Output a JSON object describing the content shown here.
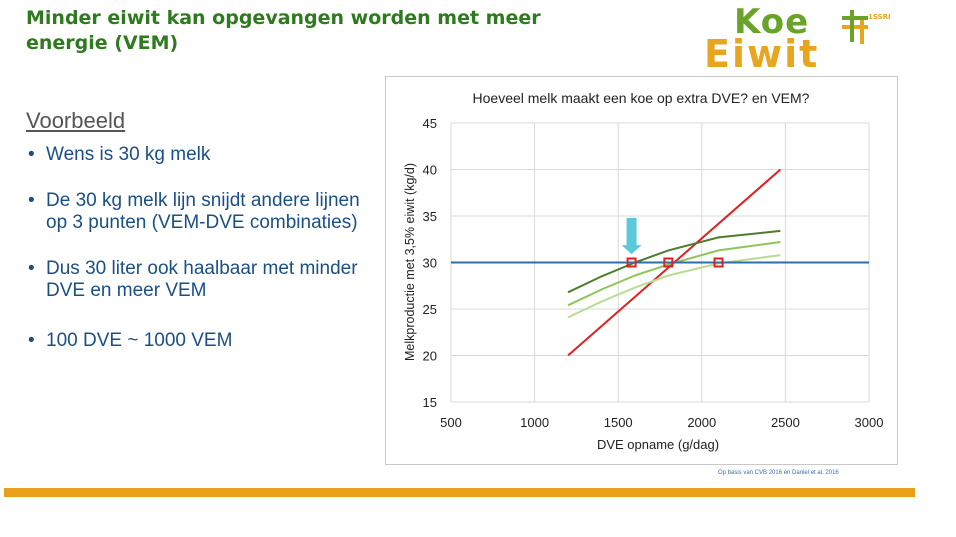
{
  "slide": {
    "title": "Minder eiwit kan opgevangen worden met meer energie (VEM)",
    "example_heading": "Voorbeeld",
    "bullets": [
      "Wens is 30 kg melk",
      "De 30 kg melk lijn snijdt andere lijnen op 3 punten (VEM-DVE combinaties)",
      "Dus 30 liter ook haalbaar met minder DVE en meer VEM",
      "100 DVE  ~ 1000 VEM"
    ],
    "source_note": "Op basis van CVB 2016 en Daniel et al. 2016",
    "logo": {
      "line1": "Koe",
      "line2": "Eiwit",
      "mark_text": "1SSRE"
    },
    "colors": {
      "title": "#2e7a1e",
      "bullet": "#1a4f86",
      "accent_bar": "#e8a019",
      "arrow": "#5bc8dc",
      "marker": "#e02020"
    }
  },
  "chart_data": {
    "type": "line",
    "title": "Hoeveel melk maakt een koe op extra DVE? en VEM?",
    "xlabel": "DVE opname (g/dag)",
    "ylabel": "Melkproductie met 3,5% eiwit (kg/d)",
    "xlim": [
      500,
      3000
    ],
    "ylim": [
      15,
      45
    ],
    "xticks": [
      500,
      1000,
      1500,
      2000,
      2500,
      3000
    ],
    "yticks": [
      15,
      20,
      25,
      30,
      35,
      40,
      45
    ],
    "grid": true,
    "series": [
      {
        "color": "#e02020",
        "x": [
          1200,
          2470
        ],
        "y": [
          20.0,
          40.0
        ]
      },
      {
        "color": "#4e7d2c",
        "x": [
          1200,
          1400,
          1600,
          1800,
          2100,
          2470
        ],
        "y": [
          26.8,
          28.5,
          30.0,
          31.3,
          32.7,
          33.4
        ]
      },
      {
        "color": "#8cc65a",
        "x": [
          1200,
          1400,
          1600,
          1800,
          2100,
          2470
        ],
        "y": [
          25.4,
          27.1,
          28.6,
          29.8,
          31.3,
          32.2
        ]
      },
      {
        "color": "#b9dc94",
        "x": [
          1200,
          1400,
          1600,
          1800,
          2100,
          2470
        ],
        "y": [
          24.1,
          25.8,
          27.3,
          28.6,
          29.9,
          30.8
        ]
      },
      {
        "color": "#2f6da8",
        "x": [
          500,
          3000
        ],
        "y": [
          30,
          30
        ]
      }
    ],
    "intersections": [
      {
        "x": 1580,
        "y": 30
      },
      {
        "x": 1800,
        "y": 30
      },
      {
        "x": 2100,
        "y": 30
      }
    ],
    "arrow": {
      "x": 1580,
      "y_top": 34.8,
      "y_bottom": 30.9
    }
  }
}
